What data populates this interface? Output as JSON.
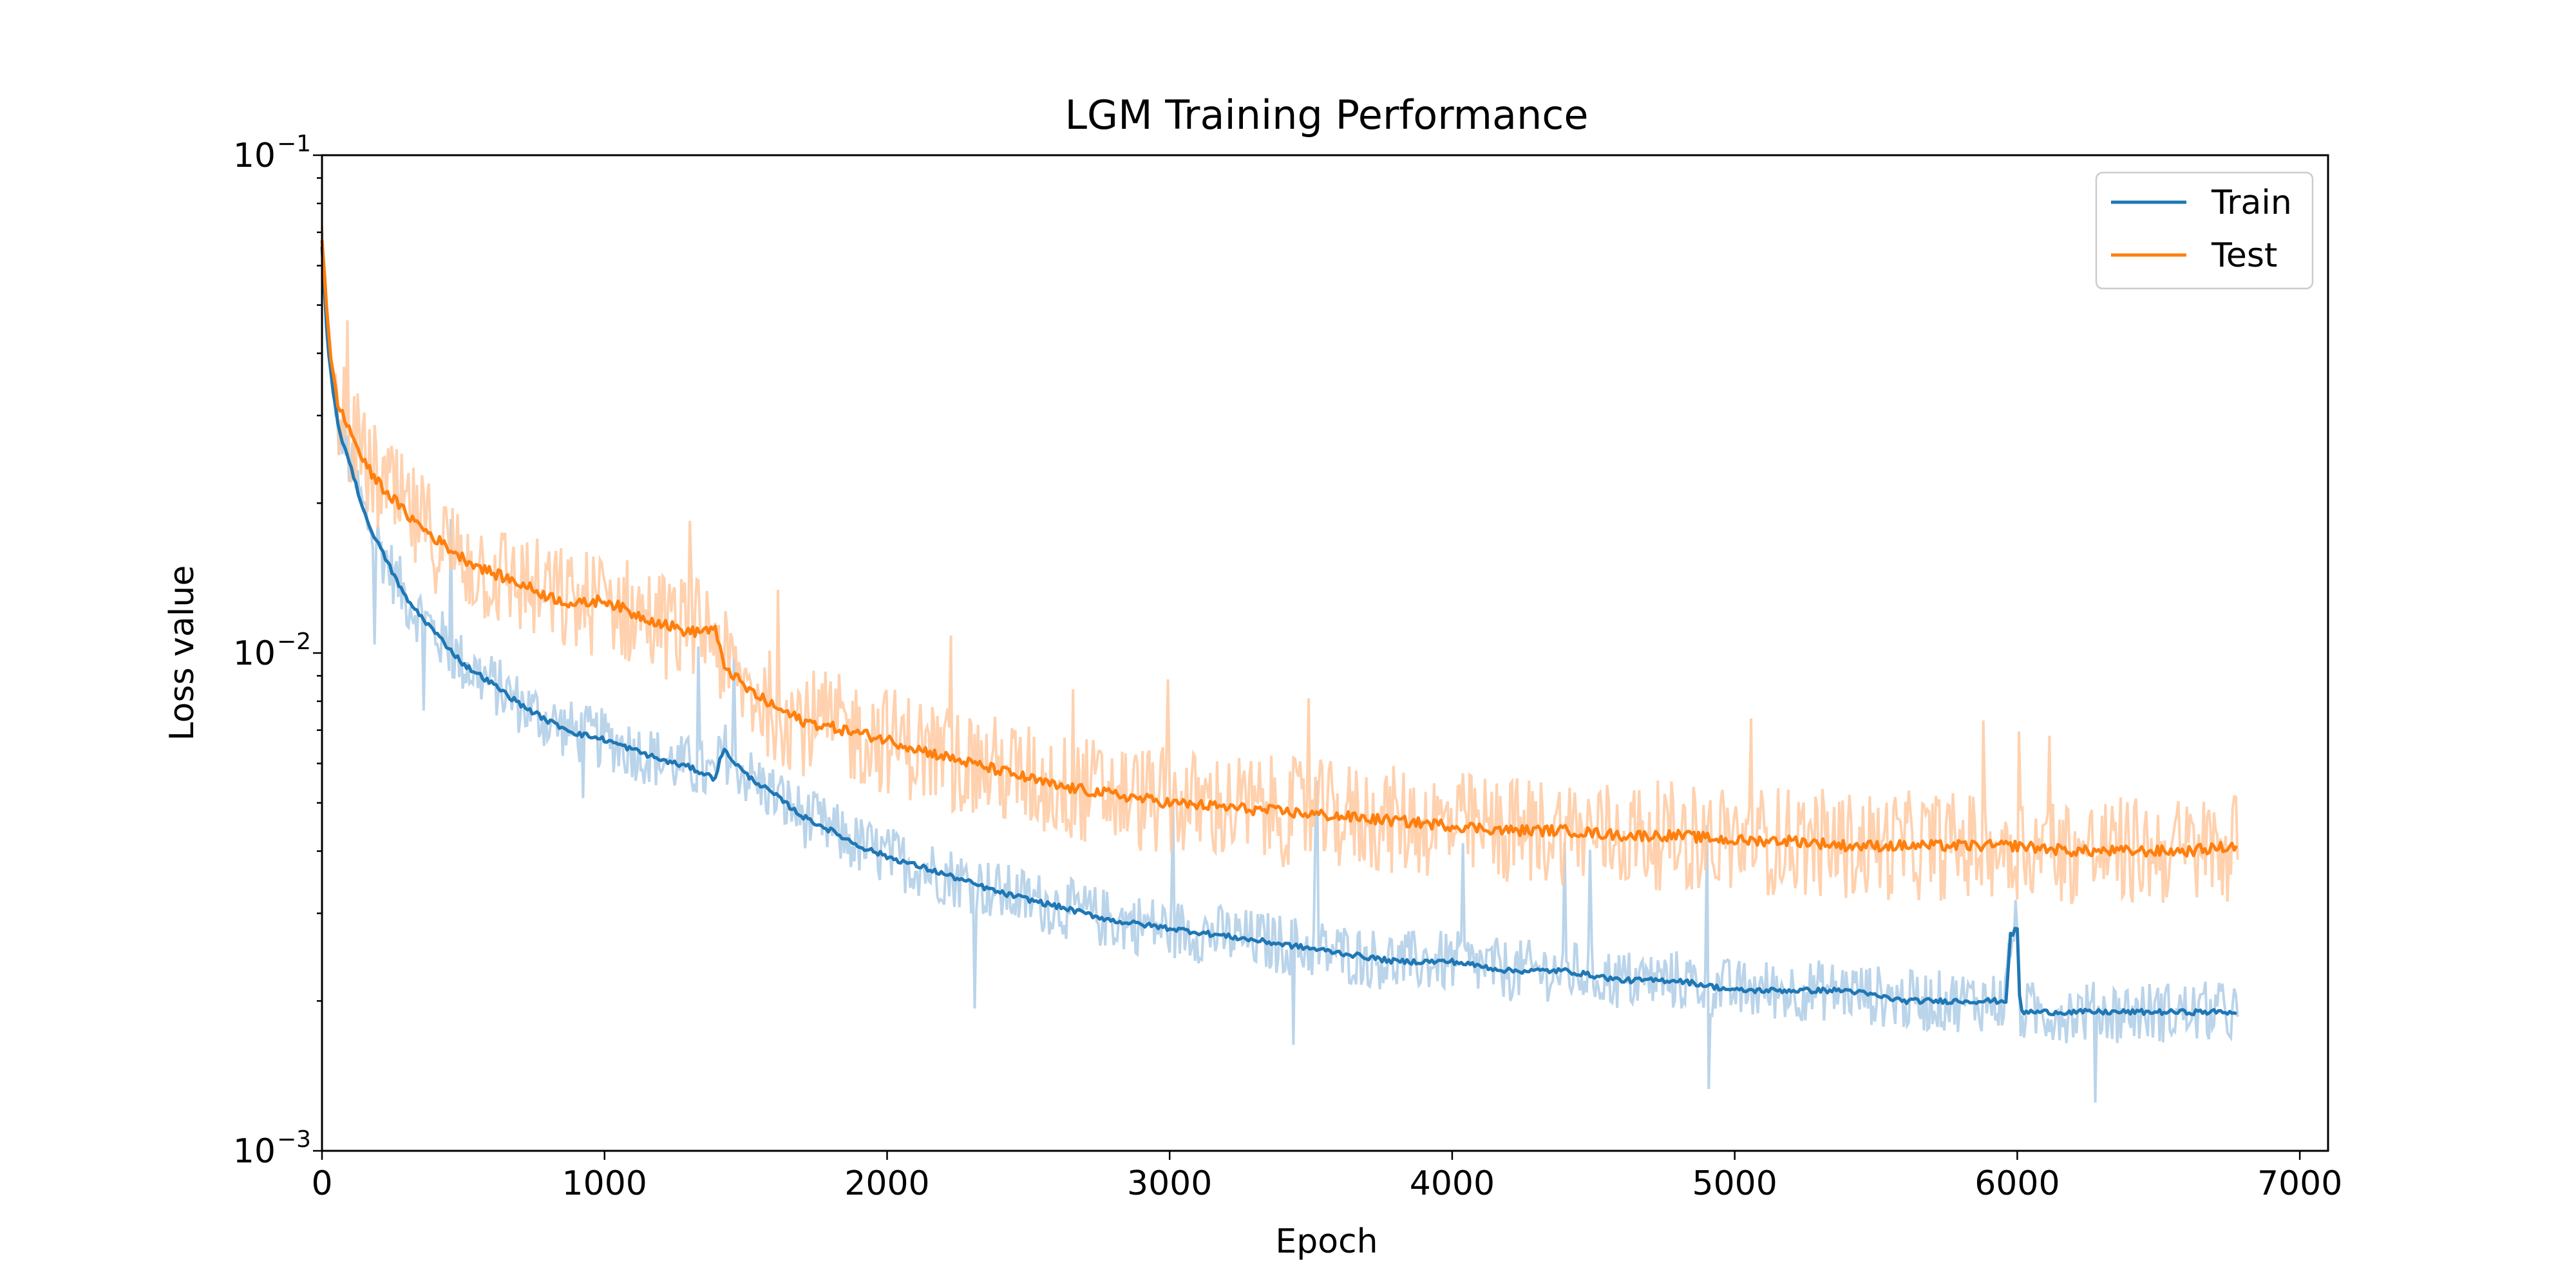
{
  "chart_data": {
    "type": "line",
    "title": "LGM Training Performance",
    "xlabel": "Epoch",
    "ylabel": "Loss value",
    "xlim": [
      0,
      7100
    ],
    "ylim": [
      0.001,
      0.1
    ],
    "yscale": "log",
    "grid": false,
    "legend_position": "top-right",
    "x_ticks": [
      0,
      1000,
      2000,
      3000,
      4000,
      5000,
      6000,
      7000
    ],
    "x_tick_labels": [
      "0",
      "1000",
      "2000",
      "3000",
      "4000",
      "5000",
      "6000",
      "7000"
    ],
    "y_ticks": [
      {
        "value": 0.1,
        "base": "10",
        "exp": "−1"
      },
      {
        "value": 0.01,
        "base": "10",
        "exp": "−2"
      },
      {
        "value": 0.001,
        "base": "10",
        "exp": "−3"
      }
    ],
    "series": [
      {
        "name": "Train",
        "color": "#1f77b4",
        "raw_color": "#aecde6",
        "x": [
          0,
          20,
          40,
          60,
          100,
          150,
          200,
          250,
          300,
          400,
          500,
          600,
          700,
          800,
          900,
          1000,
          1100,
          1200,
          1300,
          1390,
          1420,
          1500,
          1600,
          1700,
          1800,
          1900,
          2000,
          2200,
          2400,
          2600,
          2800,
          3000,
          3200,
          3400,
          3600,
          3800,
          4000,
          4200,
          4400,
          4600,
          4800,
          5000,
          5200,
          5400,
          5600,
          5800,
          5960,
          5975,
          6000,
          6010,
          6100,
          6200,
          6400,
          6600,
          6780
        ],
        "values": [
          0.065,
          0.042,
          0.033,
          0.028,
          0.024,
          0.019,
          0.0165,
          0.0145,
          0.0128,
          0.011,
          0.0095,
          0.0087,
          0.0079,
          0.0073,
          0.0069,
          0.0067,
          0.0064,
          0.0061,
          0.0059,
          0.0056,
          0.0064,
          0.0057,
          0.0052,
          0.0047,
          0.0044,
          0.0041,
          0.0039,
          0.0036,
          0.0033,
          0.0031,
          0.0029,
          0.0028,
          0.0027,
          0.0026,
          0.0025,
          0.0024,
          0.0024,
          0.0023,
          0.0023,
          0.0022,
          0.0022,
          0.0021,
          0.0021,
          0.0021,
          0.002,
          0.002,
          0.002,
          0.0027,
          0.0028,
          0.0019,
          0.0019,
          0.0019,
          0.0019,
          0.0019,
          0.0019
        ]
      },
      {
        "name": "Test",
        "color": "#ff7f0e",
        "raw_color": "#ffc9a0",
        "x": [
          0,
          20,
          40,
          60,
          100,
          150,
          200,
          300,
          400,
          500,
          600,
          700,
          800,
          900,
          1000,
          1100,
          1200,
          1300,
          1390,
          1420,
          1500,
          1600,
          1700,
          1800,
          1900,
          2000,
          2200,
          2400,
          2600,
          2800,
          3000,
          3200,
          3400,
          3600,
          3800,
          4000,
          4200,
          4400,
          4600,
          4800,
          5000,
          5200,
          5400,
          5600,
          5800,
          6000,
          6200,
          6400,
          6600,
          6780
        ],
        "values": [
          0.068,
          0.045,
          0.036,
          0.031,
          0.028,
          0.024,
          0.022,
          0.019,
          0.017,
          0.0155,
          0.0145,
          0.0138,
          0.013,
          0.0125,
          0.0128,
          0.012,
          0.0115,
          0.011,
          0.0112,
          0.0095,
          0.0085,
          0.0078,
          0.0073,
          0.0071,
          0.0069,
          0.0067,
          0.0062,
          0.0058,
          0.0054,
          0.0052,
          0.005,
          0.0049,
          0.0048,
          0.0047,
          0.0046,
          0.0045,
          0.0044,
          0.0044,
          0.0043,
          0.0043,
          0.0042,
          0.0042,
          0.0041,
          0.0041,
          0.0041,
          0.0041,
          0.004,
          0.004,
          0.004,
          0.0041
        ]
      }
    ]
  }
}
